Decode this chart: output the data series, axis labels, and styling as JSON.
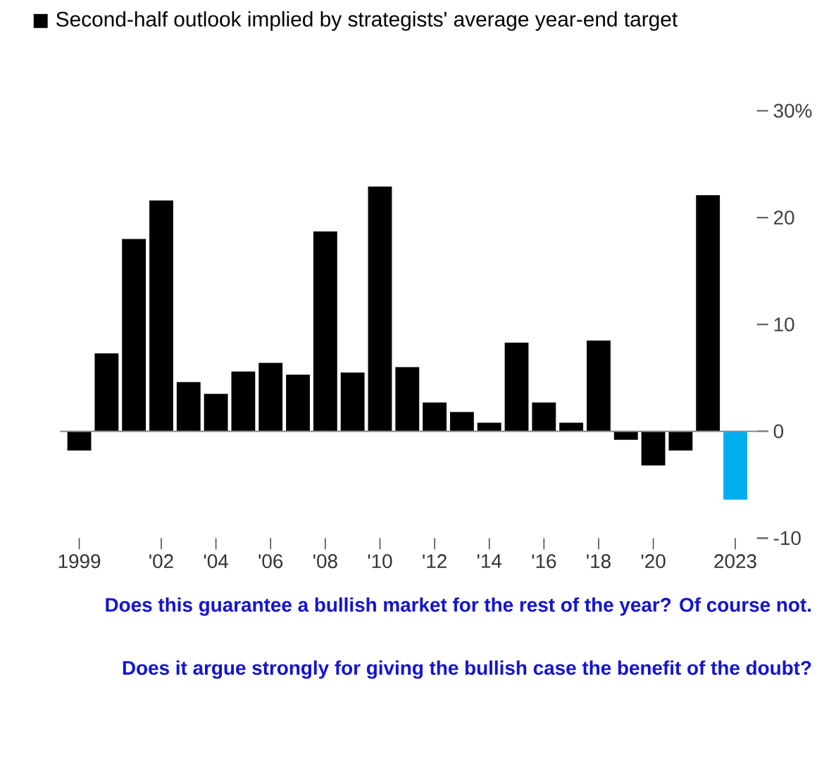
{
  "chart_data": {
    "type": "bar",
    "title": "Second-half outlook implied by strategists' average year-end target",
    "categories": [
      "1999",
      null,
      null,
      "'02",
      null,
      "'04",
      null,
      "'06",
      null,
      "'08",
      null,
      "'10",
      null,
      "'12",
      null,
      "'14",
      null,
      "'16",
      null,
      "'18",
      null,
      "'20",
      null,
      null,
      "2023"
    ],
    "values": [
      -1.8,
      7.3,
      18.0,
      21.6,
      4.6,
      3.5,
      5.6,
      6.4,
      5.3,
      18.7,
      5.5,
      22.9,
      6.0,
      2.7,
      1.8,
      0.8,
      8.3,
      2.7,
      0.8,
      8.5,
      -0.8,
      -3.2,
      -1.8,
      22.1,
      -6.4
    ],
    "colors": [
      "#000000",
      "#000000",
      "#000000",
      "#000000",
      "#000000",
      "#000000",
      "#000000",
      "#000000",
      "#000000",
      "#000000",
      "#000000",
      "#000000",
      "#000000",
      "#000000",
      "#000000",
      "#000000",
      "#000000",
      "#000000",
      "#000000",
      "#000000",
      "#000000",
      "#000000",
      "#000000",
      "#000000",
      "#00aeef"
    ],
    "ylim": [
      -10,
      30
    ],
    "ref_lines": [
      {
        "axis": "y",
        "value": 0,
        "color": "#8c8c8c"
      }
    ],
    "yticks": [
      {
        "value": 30,
        "label": "30%"
      },
      20,
      10,
      0,
      -10
    ],
    "grid": false,
    "annotations": [
      "Does this guarantee a bullish market for the rest of the year? Of course not.",
      "Does it argue strongly for giving the bullish case the benefit of the doubt?"
    ]
  }
}
